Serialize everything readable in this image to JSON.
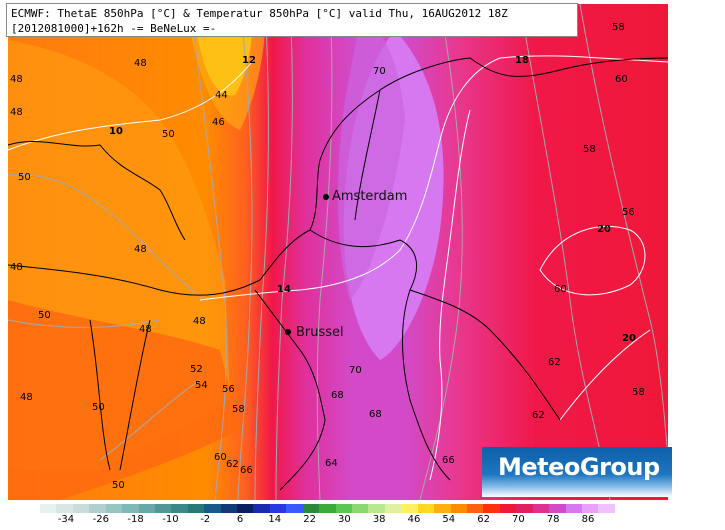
{
  "header": {
    "line1": "ECMWF: ThetaE 850hPa [°C] & Temperatur 850hPa [°C] valid Thu, 16AUG2012 18Z",
    "line2": "[2012081000]+162h -= BeNeLux =-"
  },
  "cities": [
    {
      "name": "Amsterdam"
    },
    {
      "name": "Brussel"
    }
  ],
  "contour_labels_thetae": [
    "48",
    "48",
    "48",
    "50",
    "50",
    "44",
    "46",
    "48",
    "50",
    "48",
    "50",
    "48",
    "48",
    "50",
    "50",
    "52",
    "54",
    "56",
    "58",
    "58",
    "60",
    "62",
    "64",
    "66",
    "68",
    "68",
    "70",
    "70",
    "70",
    "58",
    "58",
    "58",
    "60",
    "60",
    "60",
    "62"
  ],
  "contour_labels_temp": [
    "10",
    "12",
    "14",
    "18",
    "20",
    "20"
  ],
  "legend": {
    "ticks": [
      "-34",
      "-26",
      "-18",
      "-10",
      "-2",
      "6",
      "14",
      "22",
      "30",
      "38",
      "46",
      "54",
      "62",
      "70",
      "78",
      "86"
    ]
  },
  "logo": {
    "text": "MeteoGroup"
  },
  "colors": {
    "orange": "#ff8c00",
    "orange_dark": "#ff6a10",
    "yellow": "#ffdd10",
    "red": "#f0103c",
    "magenta": "#d24ac8",
    "violet": "#d878f0"
  }
}
